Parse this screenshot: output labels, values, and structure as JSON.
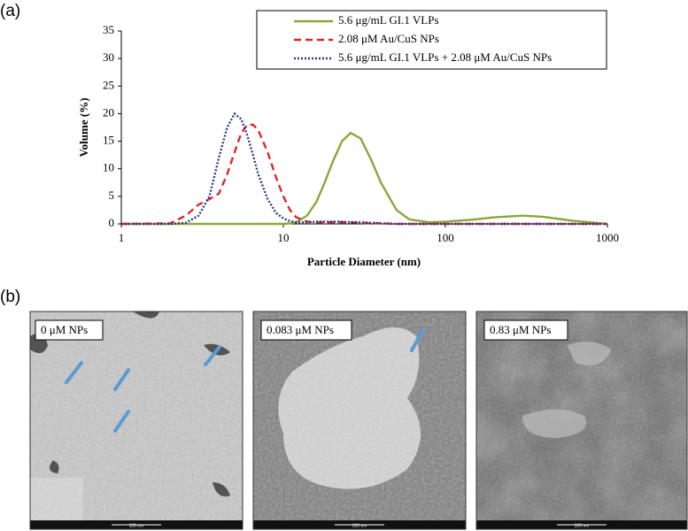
{
  "chart_data": {
    "type": "line",
    "xlabel": "Particle Diameter (nm)",
    "ylabel": "Volume (%)",
    "xscale": "log",
    "x": [
      1,
      2,
      2.5,
      3,
      3.5,
      4,
      4.5,
      5,
      5.5,
      6,
      6.5,
      7,
      8,
      9,
      10,
      11,
      12,
      14,
      16,
      18,
      20,
      23,
      26,
      30,
      35,
      40,
      50,
      60,
      80,
      100,
      150,
      200,
      300,
      400,
      600,
      1000
    ],
    "series": [
      {
        "name": "5.6 μg/mL GI.1 VLPs",
        "color": "#8aa63a",
        "dash": "solid",
        "values": [
          0,
          0,
          0,
          0,
          0,
          0,
          0,
          0,
          0,
          0,
          0,
          0,
          0,
          0,
          0,
          0.1,
          0.3,
          1.5,
          4,
          7.5,
          11,
          15,
          16.5,
          15.5,
          11.5,
          7.5,
          2.5,
          0.8,
          0.3,
          0.4,
          0.8,
          1.2,
          1.5,
          1.3,
          0.6,
          0
        ]
      },
      {
        "name": "2.08 μM Au/CuS NPs",
        "color": "#e0262a",
        "dash": "dashed",
        "values": [
          0,
          0.1,
          1.5,
          3.5,
          4.5,
          5.5,
          9,
          13,
          16.5,
          18,
          18,
          17,
          13,
          8.5,
          5,
          2.5,
          1.2,
          0.4,
          0.3,
          0.3,
          0.3,
          0.3,
          0.3,
          0.2,
          0.1,
          0.1,
          0,
          0,
          0,
          0,
          0,
          0,
          0,
          0,
          0,
          0
        ]
      },
      {
        "name": "5.6 μg/mL GI.1 VLPs + 2.08 μM Au/CuS NPs",
        "color": "#2a3a8a",
        "dash": "dotted",
        "values": [
          0,
          0,
          0.2,
          1.5,
          5,
          12,
          17.5,
          20,
          19,
          16,
          12.5,
          9,
          4.5,
          2,
          1,
          0.5,
          0.3,
          0.3,
          0.4,
          0.4,
          0.4,
          0.4,
          0.3,
          0.3,
          0.2,
          0.1,
          0,
          0,
          0,
          0,
          0,
          0,
          0,
          0,
          0,
          0
        ]
      }
    ],
    "xlim": [
      1,
      1000
    ],
    "xticks": [
      1,
      10,
      100,
      1000
    ],
    "ylim": [
      0,
      35
    ],
    "yticks": [
      0,
      5,
      10,
      15,
      20,
      25,
      30,
      35
    ],
    "legend": "top-right"
  },
  "panel_labels": [
    "(a)",
    "(b)"
  ],
  "micrographs": [
    {
      "label": "0 μM NPs",
      "scale_bar": "100 nm"
    },
    {
      "label": "0.083 μM NPs",
      "scale_bar": "100 nm"
    },
    {
      "label": "0.83 μM NPs",
      "scale_bar": "100 nm"
    }
  ]
}
